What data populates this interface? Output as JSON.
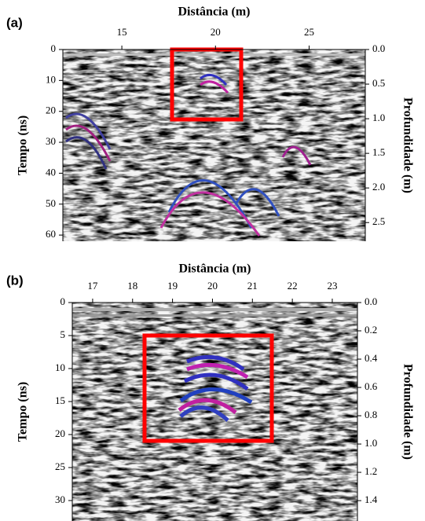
{
  "chart_data": [
    {
      "type": "radargram",
      "label": "(a)",
      "title": "Distância (m)",
      "y_label": "Tempo (ns)",
      "y2_label": "Profundidade (m)",
      "xlim": [
        11.85,
        28
      ],
      "xticks": [
        15,
        20,
        25
      ],
      "ylim": [
        0,
        62
      ],
      "yticks": [
        0,
        10,
        20,
        30,
        40,
        50,
        60
      ],
      "y2lim": [
        0,
        2.77
      ],
      "y2ticks": [
        {
          "value": 0,
          "label": "0.0"
        },
        {
          "value": 0.5,
          "label": "0.5"
        },
        {
          "value": 1,
          "label": "1.0"
        },
        {
          "value": 1.5,
          "label": "1.5"
        },
        {
          "value": 2,
          "label": "2.0"
        },
        {
          "value": 2.5,
          "label": "2.5"
        }
      ]
    },
    {
      "type": "radargram",
      "label": "(b)",
      "title": "Distância (m)",
      "y_label": "Tempo (ns)",
      "y2_label": "Profundidade (m)",
      "xlim": [
        16.49,
        23.63
      ],
      "xticks": [
        17,
        18,
        19,
        20,
        21,
        22,
        23
      ],
      "ylim": [
        0,
        33.1
      ],
      "yticks": [
        0,
        5,
        10,
        15,
        20,
        25,
        30
      ],
      "y2lim": [
        0,
        1.544
      ],
      "y2ticks": [
        {
          "value": 0,
          "label": "0.0"
        },
        {
          "value": 0.2,
          "label": "0.2"
        },
        {
          "value": 0.4,
          "label": "0.4"
        },
        {
          "value": 0.6,
          "label": "0.6"
        },
        {
          "value": 0.8,
          "label": "0.8"
        },
        {
          "value": 1,
          "label": "1.0"
        },
        {
          "value": 1.2,
          "label": "1.2"
        },
        {
          "value": 1.4,
          "label": "1.4"
        }
      ]
    }
  ]
}
